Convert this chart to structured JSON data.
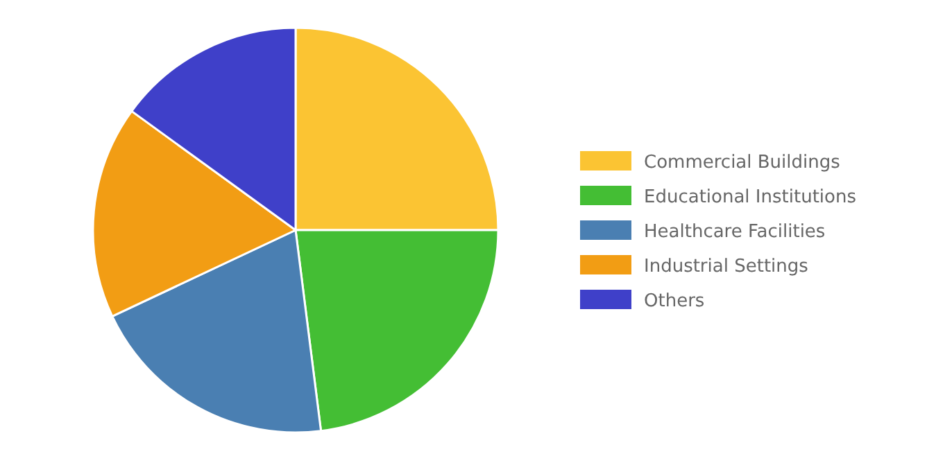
{
  "chart_data": {
    "type": "pie",
    "categories": [
      "Commercial Buildings",
      "Educational Institutions",
      "Healthcare Facilities",
      "Industrial Settings",
      "Others"
    ],
    "values": [
      25,
      23,
      20,
      17,
      15
    ],
    "colors": [
      "#fbc433",
      "#44be34",
      "#4a7fb2",
      "#f29d14",
      "#3f40c9"
    ],
    "legend": "right"
  }
}
